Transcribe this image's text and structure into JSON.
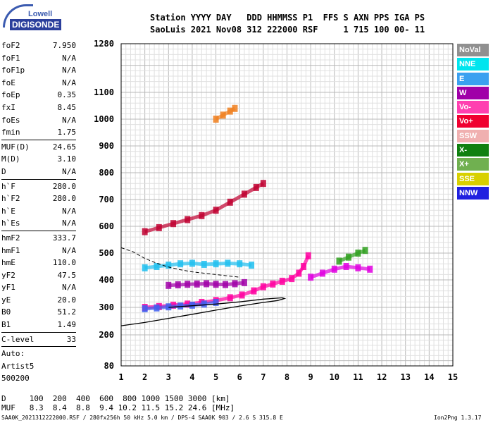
{
  "logo": {
    "line1": "Lowell",
    "line2": "DIGISONDE"
  },
  "header": {
    "line1": "Station YYYY DAY   DDD HHMMSS P1  FFS S AXN PPS IGA PS",
    "line2": "SaoLuis 2021 Nov08 312 222000 RSF     1 715 100 00- 11"
  },
  "params": [
    {
      "name": "foF2",
      "value": "7.950"
    },
    {
      "name": "foF1",
      "value": "N/A"
    },
    {
      "name": "foF1p",
      "value": "N/A"
    },
    {
      "name": "foE",
      "value": "N/A"
    },
    {
      "name": "foEp",
      "value": "0.35"
    },
    {
      "name": "fxI",
      "value": "8.45"
    },
    {
      "name": "foEs",
      "value": "N/A"
    },
    {
      "name": "fmin",
      "value": "1.75"
    },
    {
      "sep": true
    },
    {
      "name": "MUF(D)",
      "value": "24.65"
    },
    {
      "name": "M(D)",
      "value": "3.10"
    },
    {
      "name": "D",
      "value": "N/A"
    },
    {
      "sep": true
    },
    {
      "name": "h`F",
      "value": "280.0"
    },
    {
      "name": "h`F2",
      "value": "280.0"
    },
    {
      "name": "h`E",
      "value": "N/A"
    },
    {
      "name": "h`Es",
      "value": "N/A"
    },
    {
      "sep": true
    },
    {
      "name": "hmF2",
      "value": "333.7"
    },
    {
      "name": "hmF1",
      "value": "N/A"
    },
    {
      "name": "hmE",
      "value": "110.0"
    },
    {
      "name": "yF2",
      "value": "47.5"
    },
    {
      "name": "yF1",
      "value": "N/A"
    },
    {
      "name": "yE",
      "value": "20.0"
    },
    {
      "name": "B0",
      "value": "51.2"
    },
    {
      "name": "B1",
      "value": "1.49"
    },
    {
      "sep": true
    },
    {
      "name": "C-level",
      "value": "33"
    },
    {
      "sep": true
    },
    {
      "name": "Auto:",
      "value": ""
    },
    {
      "name": "Artist5",
      "value": ""
    },
    {
      "name": "500200",
      "value": ""
    }
  ],
  "legend": [
    {
      "label": "NoVal",
      "color": "#909090"
    },
    {
      "label": "NNE",
      "color": "#00e5ee"
    },
    {
      "label": "E",
      "color": "#3aa0f0"
    },
    {
      "label": "W",
      "color": "#a000a8"
    },
    {
      "label": "Vo-",
      "color": "#ff40b0"
    },
    {
      "label": "Vo+",
      "color": "#f00030"
    },
    {
      "label": "SSW",
      "color": "#f0b0b0"
    },
    {
      "label": "X-",
      "color": "#108010"
    },
    {
      "label": "X+",
      "color": "#70b050"
    },
    {
      "label": "SSE",
      "color": "#d8d000"
    },
    {
      "label": "NNW",
      "color": "#2020e0"
    }
  ],
  "muf_table": {
    "line1": "D     100  200  400  600  800 1000 1500 3000 [km]",
    "line2": "MUF   8.3  8.4  8.8  9.4 10.2 11.5 15.2 24.6 [MHz]"
  },
  "footer": {
    "left": "SAA0K_2021312222000.RSF / 280fx256h 50 kHz 5.0 km / DPS-4 SAA0K 903 / 2.6 S 315.8 E",
    "right": "Ion2Png 1.3.17"
  },
  "chart_data": {
    "type": "scatter",
    "xlim": [
      1,
      15
    ],
    "ylim": [
      80,
      1280
    ],
    "x_ticks": [
      "1",
      "2",
      "3",
      "4",
      "5",
      "6",
      "7",
      "8",
      "9",
      "10",
      "11",
      "12",
      "13",
      "14",
      "15"
    ],
    "y_ticks": [
      "80",
      "200",
      "300",
      "400",
      "500",
      "600",
      "700",
      "800",
      "900",
      "1000",
      "1100",
      "1280"
    ],
    "y_tick_values": [
      80,
      200,
      300,
      400,
      500,
      600,
      700,
      800,
      900,
      1000,
      1100,
      1280
    ],
    "y_scale": "nonlinear (virtual height)",
    "grid": true,
    "traces": [
      {
        "color": "#ff00a0",
        "points": [
          [
            2.0,
            300
          ],
          [
            2.6,
            303
          ],
          [
            3.2,
            308
          ],
          [
            3.8,
            312
          ],
          [
            4.4,
            318
          ],
          [
            5.0,
            325
          ],
          [
            5.6,
            335
          ],
          [
            6.1,
            345
          ],
          [
            6.6,
            360
          ],
          [
            7.0,
            375
          ],
          [
            7.4,
            385
          ],
          [
            7.8,
            395
          ],
          [
            8.2,
            405
          ],
          [
            8.5,
            425
          ],
          [
            8.7,
            450
          ],
          [
            8.9,
            490
          ]
        ]
      },
      {
        "color": "#4060f0",
        "points": [
          [
            2.0,
            295
          ],
          [
            2.5,
            298
          ],
          [
            3.0,
            302
          ],
          [
            3.5,
            305
          ],
          [
            4.0,
            308
          ],
          [
            4.5,
            312
          ],
          [
            5.0,
            318
          ]
        ]
      },
      {
        "color": "#a000a8",
        "points": [
          [
            3.0,
            380
          ],
          [
            3.4,
            382
          ],
          [
            3.8,
            384
          ],
          [
            4.2,
            385
          ],
          [
            4.6,
            386
          ],
          [
            5.0,
            384
          ],
          [
            5.4,
            383
          ],
          [
            5.8,
            386
          ],
          [
            6.2,
            390
          ]
        ]
      },
      {
        "color": "#c00030",
        "points": [
          [
            2.0,
            580
          ],
          [
            2.6,
            595
          ],
          [
            3.2,
            610
          ],
          [
            3.8,
            625
          ],
          [
            4.4,
            640
          ],
          [
            5.0,
            660
          ],
          [
            5.6,
            690
          ],
          [
            6.2,
            720
          ],
          [
            6.7,
            745
          ],
          [
            7.0,
            760
          ]
        ]
      },
      {
        "color": "#20c0f0",
        "points": [
          [
            2.0,
            445
          ],
          [
            2.5,
            450
          ],
          [
            3.0,
            455
          ],
          [
            3.5,
            460
          ],
          [
            4.0,
            462
          ],
          [
            4.5,
            458
          ],
          [
            5.0,
            460
          ],
          [
            5.5,
            462
          ],
          [
            6.0,
            460
          ],
          [
            6.5,
            455
          ]
        ]
      },
      {
        "color": "#e000e0",
        "points": [
          [
            9.0,
            410
          ],
          [
            9.5,
            425
          ],
          [
            10.0,
            440
          ],
          [
            10.5,
            450
          ],
          [
            11.0,
            445
          ],
          [
            11.5,
            440
          ]
        ]
      },
      {
        "color": "#30a020",
        "points": [
          [
            10.2,
            470
          ],
          [
            10.6,
            485
          ],
          [
            11.0,
            500
          ],
          [
            11.3,
            510
          ]
        ]
      },
      {
        "color": "#f08020",
        "points": [
          [
            5.0,
            1000
          ],
          [
            5.3,
            1015
          ],
          [
            5.6,
            1030
          ],
          [
            5.8,
            1040
          ]
        ]
      }
    ],
    "profile_solid": [
      [
        1.0,
        233
      ],
      [
        2.0,
        245
      ],
      [
        3.0,
        260
      ],
      [
        4.0,
        275
      ],
      [
        5.0,
        290
      ],
      [
        6.0,
        305
      ],
      [
        7.0,
        318
      ],
      [
        7.6,
        325
      ],
      [
        7.9,
        332
      ],
      [
        7.8,
        335
      ],
      [
        7.0,
        330
      ],
      [
        6.0,
        320
      ],
      [
        5.0,
        312
      ],
      [
        4.0,
        306
      ],
      [
        3.0,
        300
      ]
    ],
    "profile_dashed": [
      [
        1.0,
        520
      ],
      [
        1.5,
        505
      ],
      [
        2.0,
        480
      ],
      [
        2.5,
        462
      ],
      [
        3.0,
        448
      ],
      [
        3.5,
        438
      ],
      [
        4.0,
        430
      ],
      [
        4.5,
        425
      ],
      [
        5.0,
        420
      ],
      [
        5.5,
        415
      ],
      [
        6.0,
        410
      ]
    ]
  }
}
